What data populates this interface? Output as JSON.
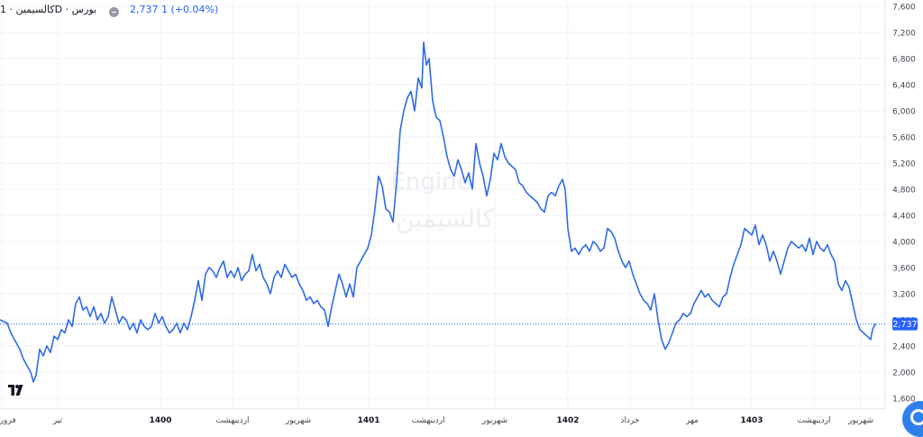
{
  "header": {
    "symbol": "کالسیمین · 1D · بورس",
    "last_value": "2,737",
    "change": "1 (+0.04%)"
  },
  "watermark": {
    "line1": "Engine",
    "line2": "کالسیمین"
  },
  "colors": {
    "line": "#2e6be6",
    "last_price_label_bg": "#2962ff",
    "text": "#131722",
    "axis_text": "#434651",
    "grid": "#f0f3fa"
  },
  "chart_data": {
    "type": "line",
    "title": "",
    "xlabel": "",
    "ylabel": "",
    "ylim": [
      1600,
      7600
    ],
    "y_ticks": [
      1600,
      2000,
      2400,
      2800,
      3200,
      3600,
      4000,
      4400,
      4800,
      5200,
      5600,
      6000,
      6400,
      6800,
      7200,
      7600
    ],
    "y_tick_labels": [
      "1,600",
      "2,000",
      "2,400",
      "2,800",
      "3,200",
      "3,600",
      "4,000",
      "4,400",
      "4,800",
      "5,200",
      "5,600",
      "6,000",
      "6,400",
      "6,800",
      "7,200",
      "7,600"
    ],
    "x_ticks": [
      {
        "label": "فروردین",
        "t": 2,
        "bold": false
      },
      {
        "label": "تیر",
        "t": 64,
        "bold": false
      },
      {
        "label": "1400",
        "t": 178,
        "bold": true
      },
      {
        "label": "اردیبهشت",
        "t": 258,
        "bold": false
      },
      {
        "label": "شهریور",
        "t": 331,
        "bold": false
      },
      {
        "label": "1401",
        "t": 409,
        "bold": true
      },
      {
        "label": "اردیبهشت",
        "t": 475,
        "bold": false
      },
      {
        "label": "شهریور",
        "t": 549,
        "bold": false
      },
      {
        "label": "1402",
        "t": 630,
        "bold": true
      },
      {
        "label": "خرداد",
        "t": 699,
        "bold": false
      },
      {
        "label": "مهر",
        "t": 768,
        "bold": false
      },
      {
        "label": "1403",
        "t": 834,
        "bold": true
      },
      {
        "label": "اردیبهشت",
        "t": 903,
        "bold": false
      },
      {
        "label": "شهریور",
        "t": 955,
        "bold": false
      }
    ],
    "last_price": 2737,
    "last_price_label": "2,737",
    "series": [
      {
        "points": [
          [
            0,
            2800
          ],
          [
            8,
            2750
          ],
          [
            12,
            2600
          ],
          [
            18,
            2450
          ],
          [
            22,
            2350
          ],
          [
            26,
            2200
          ],
          [
            30,
            2100
          ],
          [
            34,
            2000
          ],
          [
            37,
            1850
          ],
          [
            40,
            1950
          ],
          [
            44,
            2350
          ],
          [
            48,
            2250
          ],
          [
            52,
            2400
          ],
          [
            56,
            2300
          ],
          [
            60,
            2550
          ],
          [
            64,
            2500
          ],
          [
            68,
            2650
          ],
          [
            72,
            2600
          ],
          [
            76,
            2800
          ],
          [
            80,
            2700
          ],
          [
            84,
            3050
          ],
          [
            88,
            3150
          ],
          [
            92,
            2950
          ],
          [
            96,
            3000
          ],
          [
            100,
            2850
          ],
          [
            104,
            3000
          ],
          [
            108,
            2800
          ],
          [
            112,
            2900
          ],
          [
            116,
            2750
          ],
          [
            120,
            2850
          ],
          [
            124,
            3150
          ],
          [
            128,
            2950
          ],
          [
            132,
            2750
          ],
          [
            136,
            2850
          ],
          [
            140,
            2800
          ],
          [
            144,
            2650
          ],
          [
            148,
            2750
          ],
          [
            152,
            2600
          ],
          [
            156,
            2800
          ],
          [
            160,
            2700
          ],
          [
            164,
            2650
          ],
          [
            168,
            2700
          ],
          [
            172,
            2900
          ],
          [
            176,
            2750
          ],
          [
            180,
            2850
          ],
          [
            184,
            2700
          ],
          [
            188,
            2600
          ],
          [
            192,
            2650
          ],
          [
            196,
            2750
          ],
          [
            200,
            2600
          ],
          [
            204,
            2750
          ],
          [
            208,
            2650
          ],
          [
            212,
            2850
          ],
          [
            216,
            3100
          ],
          [
            220,
            3400
          ],
          [
            224,
            3100
          ],
          [
            228,
            3500
          ],
          [
            232,
            3600
          ],
          [
            236,
            3550
          ],
          [
            240,
            3450
          ],
          [
            244,
            3600
          ],
          [
            248,
            3700
          ],
          [
            252,
            3450
          ],
          [
            256,
            3550
          ],
          [
            260,
            3450
          ],
          [
            264,
            3600
          ],
          [
            268,
            3400
          ],
          [
            272,
            3500
          ],
          [
            276,
            3550
          ],
          [
            280,
            3800
          ],
          [
            284,
            3550
          ],
          [
            288,
            3650
          ],
          [
            292,
            3450
          ],
          [
            296,
            3350
          ],
          [
            300,
            3200
          ],
          [
            304,
            3450
          ],
          [
            308,
            3550
          ],
          [
            312,
            3450
          ],
          [
            316,
            3650
          ],
          [
            320,
            3550
          ],
          [
            324,
            3450
          ],
          [
            328,
            3500
          ],
          [
            332,
            3350
          ],
          [
            336,
            3250
          ],
          [
            340,
            3100
          ],
          [
            344,
            3150
          ],
          [
            348,
            3050
          ],
          [
            352,
            3100
          ],
          [
            356,
            3000
          ],
          [
            360,
            2950
          ],
          [
            364,
            2700
          ],
          [
            368,
            3000
          ],
          [
            372,
            3250
          ],
          [
            376,
            3500
          ],
          [
            380,
            3350
          ],
          [
            384,
            3150
          ],
          [
            388,
            3350
          ],
          [
            392,
            3150
          ],
          [
            396,
            3600
          ],
          [
            400,
            3700
          ],
          [
            404,
            3800
          ],
          [
            408,
            3900
          ],
          [
            412,
            4100
          ],
          [
            416,
            4500
          ],
          [
            420,
            5000
          ],
          [
            424,
            4850
          ],
          [
            428,
            4500
          ],
          [
            432,
            4450
          ],
          [
            436,
            4300
          ],
          [
            440,
            4900
          ],
          [
            444,
            5700
          ],
          [
            448,
            6000
          ],
          [
            452,
            6200
          ],
          [
            456,
            6300
          ],
          [
            460,
            6000
          ],
          [
            464,
            6500
          ],
          [
            468,
            6350
          ],
          [
            470,
            7050
          ],
          [
            473,
            6700
          ],
          [
            476,
            6800
          ],
          [
            480,
            6150
          ],
          [
            484,
            5900
          ],
          [
            488,
            5850
          ],
          [
            492,
            5600
          ],
          [
            496,
            5300
          ],
          [
            500,
            5100
          ],
          [
            504,
            5000
          ],
          [
            508,
            5250
          ],
          [
            512,
            5100
          ],
          [
            516,
            4900
          ],
          [
            520,
            5050
          ],
          [
            524,
            4800
          ],
          [
            528,
            5500
          ],
          [
            532,
            5200
          ],
          [
            536,
            5000
          ],
          [
            540,
            4700
          ],
          [
            544,
            4950
          ],
          [
            548,
            5350
          ],
          [
            552,
            5250
          ],
          [
            556,
            5500
          ],
          [
            560,
            5300
          ],
          [
            564,
            5200
          ],
          [
            568,
            5150
          ],
          [
            572,
            5100
          ],
          [
            576,
            4900
          ],
          [
            580,
            4850
          ],
          [
            584,
            4750
          ],
          [
            588,
            4700
          ],
          [
            592,
            4650
          ],
          [
            596,
            4600
          ],
          [
            600,
            4500
          ],
          [
            604,
            4450
          ],
          [
            608,
            4700
          ],
          [
            612,
            4750
          ],
          [
            616,
            4700
          ],
          [
            620,
            4850
          ],
          [
            624,
            4950
          ],
          [
            627,
            4800
          ],
          [
            630,
            4200
          ],
          [
            634,
            3850
          ],
          [
            638,
            3900
          ],
          [
            642,
            3800
          ],
          [
            646,
            3900
          ],
          [
            650,
            3950
          ],
          [
            654,
            3850
          ],
          [
            658,
            4000
          ],
          [
            662,
            3950
          ],
          [
            666,
            3850
          ],
          [
            670,
            3900
          ],
          [
            674,
            4200
          ],
          [
            678,
            4150
          ],
          [
            682,
            4050
          ],
          [
            686,
            3850
          ],
          [
            690,
            3700
          ],
          [
            694,
            3600
          ],
          [
            698,
            3700
          ],
          [
            702,
            3500
          ],
          [
            706,
            3350
          ],
          [
            710,
            3200
          ],
          [
            714,
            3100
          ],
          [
            718,
            3050
          ],
          [
            722,
            2950
          ],
          [
            726,
            3200
          ],
          [
            730,
            2800
          ],
          [
            734,
            2500
          ],
          [
            738,
            2350
          ],
          [
            742,
            2450
          ],
          [
            746,
            2600
          ],
          [
            750,
            2750
          ],
          [
            754,
            2800
          ],
          [
            758,
            2900
          ],
          [
            762,
            2850
          ],
          [
            766,
            2900
          ],
          [
            770,
            3050
          ],
          [
            774,
            3150
          ],
          [
            778,
            3250
          ],
          [
            782,
            3150
          ],
          [
            786,
            3200
          ],
          [
            790,
            3100
          ],
          [
            794,
            3050
          ],
          [
            798,
            3000
          ],
          [
            802,
            3150
          ],
          [
            806,
            3200
          ],
          [
            810,
            3450
          ],
          [
            814,
            3650
          ],
          [
            818,
            3800
          ],
          [
            822,
            3950
          ],
          [
            826,
            4200
          ],
          [
            830,
            4150
          ],
          [
            834,
            4100
          ],
          [
            838,
            4250
          ],
          [
            842,
            3950
          ],
          [
            846,
            4100
          ],
          [
            850,
            3950
          ],
          [
            854,
            3700
          ],
          [
            858,
            3850
          ],
          [
            862,
            3700
          ],
          [
            866,
            3500
          ],
          [
            870,
            3700
          ],
          [
            874,
            3900
          ],
          [
            878,
            4000
          ],
          [
            882,
            3950
          ],
          [
            886,
            3900
          ],
          [
            890,
            3950
          ],
          [
            894,
            3850
          ],
          [
            898,
            4050
          ],
          [
            902,
            3800
          ],
          [
            906,
            4000
          ],
          [
            910,
            3900
          ],
          [
            914,
            3850
          ],
          [
            918,
            3950
          ],
          [
            922,
            3800
          ],
          [
            926,
            3700
          ],
          [
            930,
            3350
          ],
          [
            934,
            3250
          ],
          [
            938,
            3400
          ],
          [
            942,
            3300
          ],
          [
            946,
            3050
          ],
          [
            950,
            2800
          ],
          [
            954,
            2650
          ],
          [
            958,
            2600
          ],
          [
            962,
            2550
          ],
          [
            966,
            2500
          ],
          [
            968,
            2650
          ],
          [
            971,
            2737
          ]
        ]
      }
    ]
  }
}
